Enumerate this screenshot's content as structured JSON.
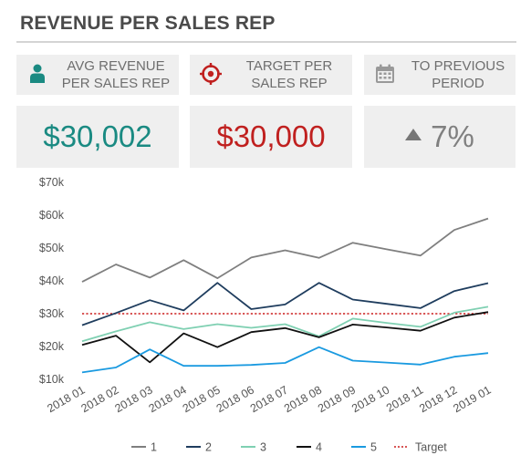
{
  "title": "REVENUE PER SALES REP",
  "kpis": [
    {
      "label_line1": "AVG REVENUE",
      "label_line2": "PER SALES REP",
      "value": "$30,002",
      "icon": "person-icon",
      "color": "#1a8a82"
    },
    {
      "label_line1": "TARGET PER",
      "label_line2": "SALES REP",
      "value": "$30,000",
      "icon": "target-icon",
      "color": "#c0201f"
    },
    {
      "label_line1": "TO PREVIOUS",
      "label_line2": "PERIOD",
      "value": "7%",
      "icon": "calendar-icon",
      "trend": "up",
      "color": "#808080"
    }
  ],
  "chart_data": {
    "type": "line",
    "x": [
      "2018 01",
      "2018 02",
      "2018 03",
      "2018 04",
      "2018 05",
      "2018 06",
      "2018 07",
      "2018 08",
      "2018 09",
      "2018 10",
      "2018 11",
      "2018 12",
      "2019 01"
    ],
    "ylim": [
      10000,
      70000
    ],
    "yticks": [
      10000,
      20000,
      30000,
      40000,
      50000,
      60000,
      70000
    ],
    "ytick_labels": [
      "$10k",
      "$20k",
      "$30k",
      "$40k",
      "$50k",
      "$60k",
      "$70k"
    ],
    "grid": false,
    "legend_position": "bottom",
    "series": [
      {
        "name": "1",
        "color": "#7f7f7f",
        "values": [
          39700,
          45000,
          41000,
          46300,
          40800,
          47100,
          49300,
          47000,
          51600,
          49600,
          47700,
          55500,
          59000
        ]
      },
      {
        "name": "2",
        "color": "#1f3d5e",
        "values": [
          26500,
          30200,
          34100,
          31000,
          39400,
          31400,
          32800,
          39400,
          34300,
          33000,
          31700,
          36900,
          39300
        ]
      },
      {
        "name": "3",
        "color": "#7fd0b2",
        "values": [
          21600,
          24600,
          27400,
          25300,
          26800,
          25700,
          26800,
          23100,
          28500,
          27200,
          26000,
          30300,
          32100
        ]
      },
      {
        "name": "4",
        "color": "#111111",
        "values": [
          20500,
          23300,
          15200,
          24000,
          19800,
          24400,
          25600,
          22800,
          26700,
          25800,
          24800,
          28800,
          30500
        ]
      },
      {
        "name": "5",
        "color": "#1a9ae0",
        "values": [
          12100,
          13600,
          19100,
          14100,
          14100,
          14400,
          15000,
          19800,
          15700,
          15100,
          14500,
          16900,
          18000
        ]
      }
    ],
    "target": {
      "name": "Target",
      "value": 30000,
      "color": "#cc1f1f"
    }
  }
}
